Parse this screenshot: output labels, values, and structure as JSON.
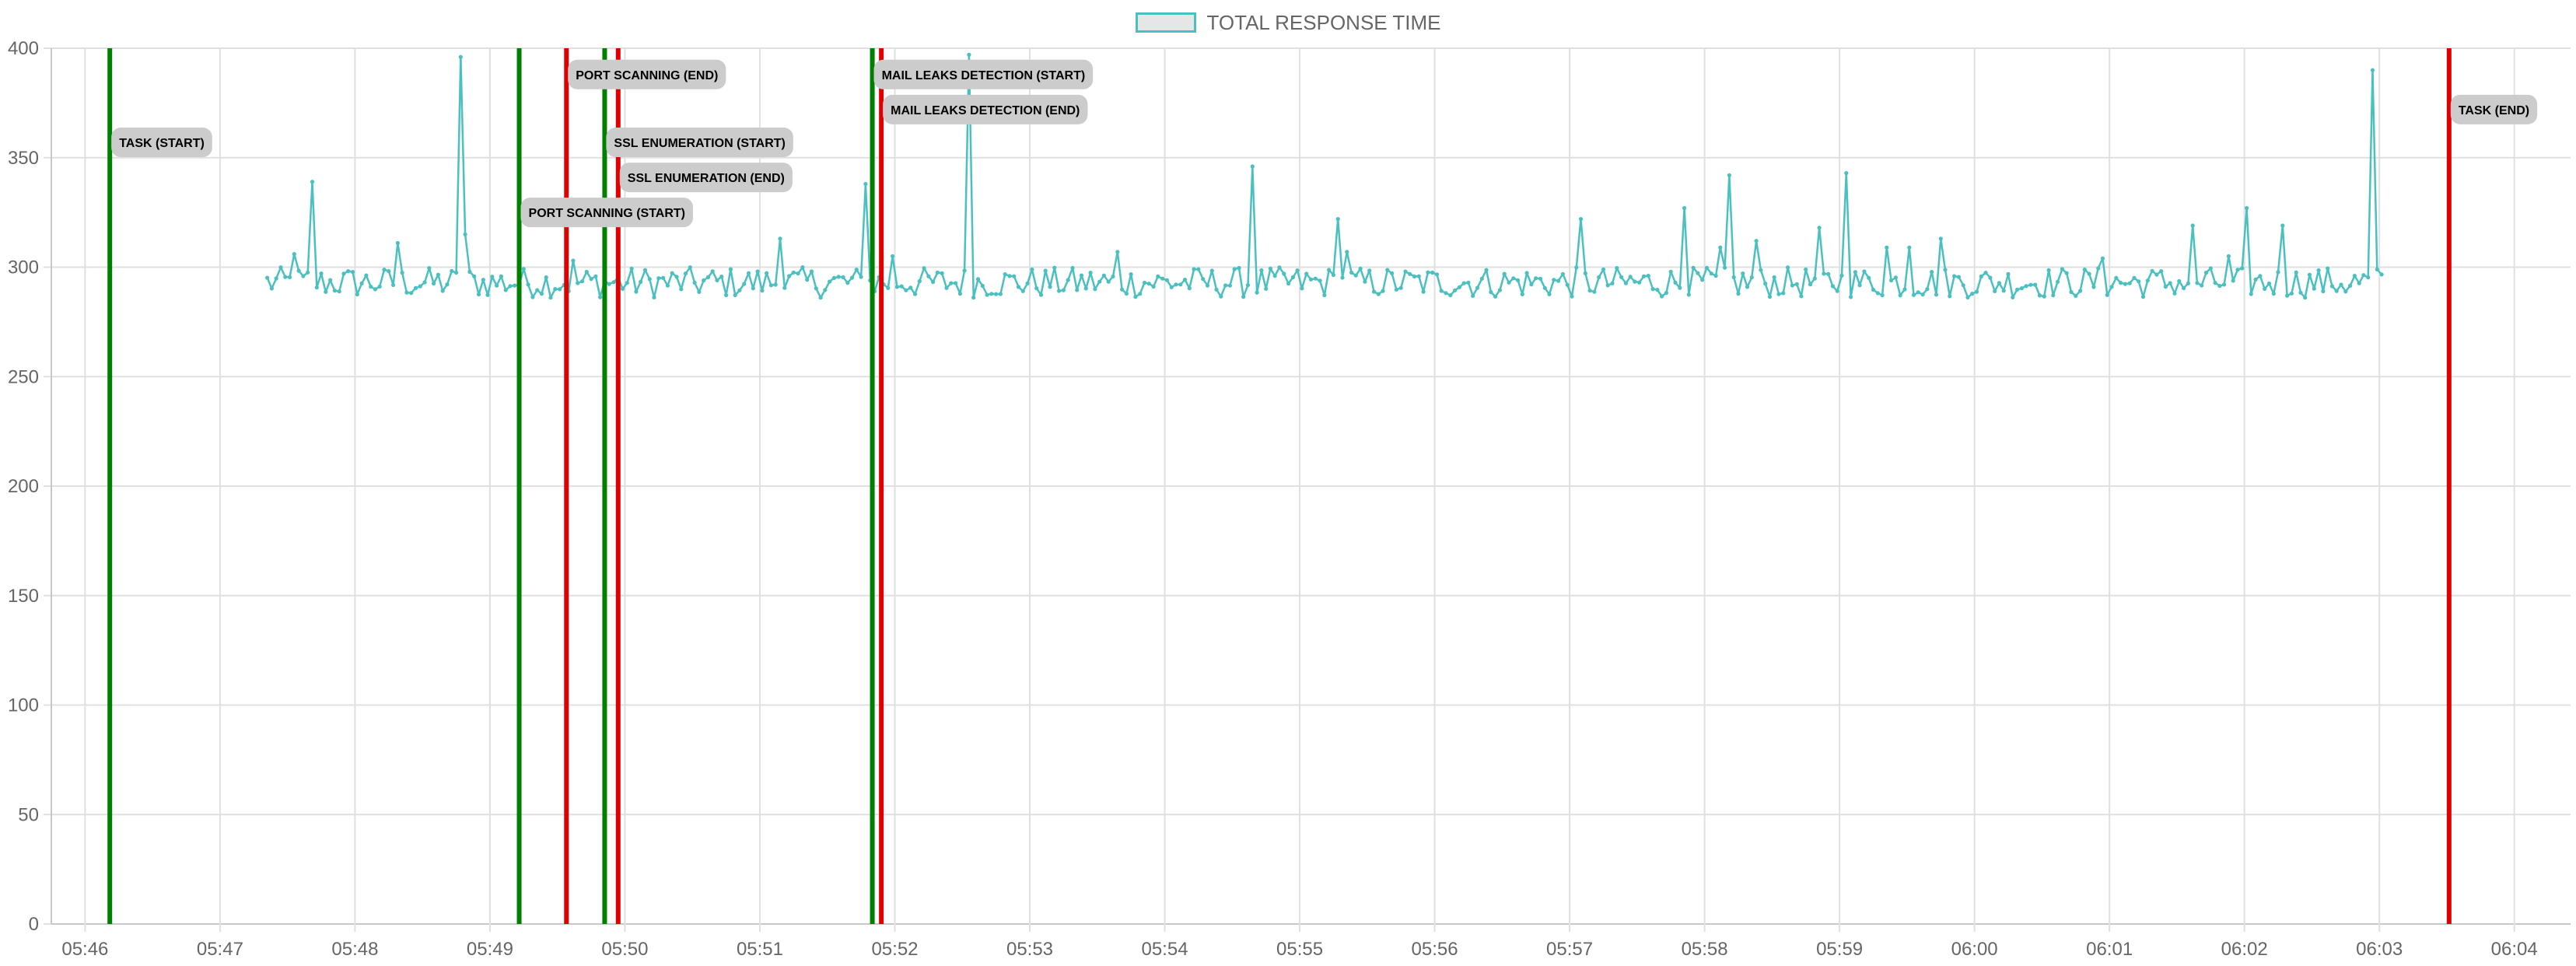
{
  "chart_data": {
    "type": "line",
    "title": "",
    "xlabel": "",
    "ylabel": "",
    "ylim": [
      0,
      400
    ],
    "y_ticks": [
      0,
      50,
      100,
      150,
      200,
      250,
      300,
      350,
      400
    ],
    "x_ticks": [
      "05:46",
      "05:47",
      "05:48",
      "05:49",
      "05:50",
      "05:51",
      "05:52",
      "05:53",
      "05:54",
      "05:55",
      "05:56",
      "05:57",
      "05:58",
      "05:59",
      "06:00",
      "06:01",
      "06:02",
      "06:03",
      "06:04"
    ],
    "x_start": "05:45:45",
    "x_end": "06:04:25",
    "grid": true,
    "legend_position": "top-center",
    "series": [
      {
        "name": "TOTAL RESPONSE TIME",
        "color": "#4bc0c0",
        "fill": "#e6e6e6",
        "start_time": "05:47:21",
        "end_time": "06:03:01",
        "baseline": 293,
        "spikes": [
          {
            "time": "05:47:34",
            "value": 306
          },
          {
            "time": "05:47:42",
            "value": 339
          },
          {
            "time": "05:48:20",
            "value": 311
          },
          {
            "time": "05:48:47",
            "value": 396
          },
          {
            "time": "05:48:49",
            "value": 315
          },
          {
            "time": "05:49:38",
            "value": 303
          },
          {
            "time": "05:51:10",
            "value": 313
          },
          {
            "time": "05:51:47",
            "value": 338
          },
          {
            "time": "05:51:59",
            "value": 305
          },
          {
            "time": "05:52:33",
            "value": 397
          },
          {
            "time": "05:53:40",
            "value": 307
          },
          {
            "time": "05:54:39",
            "value": 346
          },
          {
            "time": "05:55:17",
            "value": 322
          },
          {
            "time": "05:55:22",
            "value": 307
          },
          {
            "time": "05:57:06",
            "value": 322
          },
          {
            "time": "05:57:52",
            "value": 327
          },
          {
            "time": "05:58:07",
            "value": 309
          },
          {
            "time": "05:58:12",
            "value": 342
          },
          {
            "time": "05:58:23",
            "value": 312
          },
          {
            "time": "05:58:52",
            "value": 318
          },
          {
            "time": "05:59:03",
            "value": 343
          },
          {
            "time": "05:59:22",
            "value": 309
          },
          {
            "time": "05:59:31",
            "value": 309
          },
          {
            "time": "05:59:45",
            "value": 313
          },
          {
            "time": "06:00:58",
            "value": 304
          },
          {
            "time": "06:01:38",
            "value": 319
          },
          {
            "time": "06:01:54",
            "value": 305
          },
          {
            "time": "06:02:02",
            "value": 327
          },
          {
            "time": "06:02:17",
            "value": 319
          },
          {
            "time": "06:02:57",
            "value": 390
          }
        ]
      }
    ],
    "annotations": [
      {
        "label": "TASK (START)",
        "time": "05:46:11",
        "color": "#008000",
        "label_y": 357
      },
      {
        "label": "PORT SCANNING (START)",
        "time": "05:49:13",
        "color": "#008000",
        "label_y": 325
      },
      {
        "label": "PORT SCANNING (END)",
        "time": "05:49:34",
        "color": "#e00000",
        "label_y": 388
      },
      {
        "label": "SSL ENUMERATION (START)",
        "time": "05:49:51",
        "color": "#008000",
        "label_y": 357
      },
      {
        "label": "SSL ENUMERATION (END)",
        "time": "05:49:57",
        "color": "#e00000",
        "label_y": 341
      },
      {
        "label": "MAIL LEAKS DETECTION (START)",
        "time": "05:51:50",
        "color": "#008000",
        "label_y": 388
      },
      {
        "label": "MAIL LEAKS DETECTION (END)",
        "time": "05:51:54",
        "color": "#e00000",
        "label_y": 372
      },
      {
        "label": "TASK (END)",
        "time": "06:03:31",
        "color": "#e00000",
        "label_y": 372
      }
    ]
  }
}
